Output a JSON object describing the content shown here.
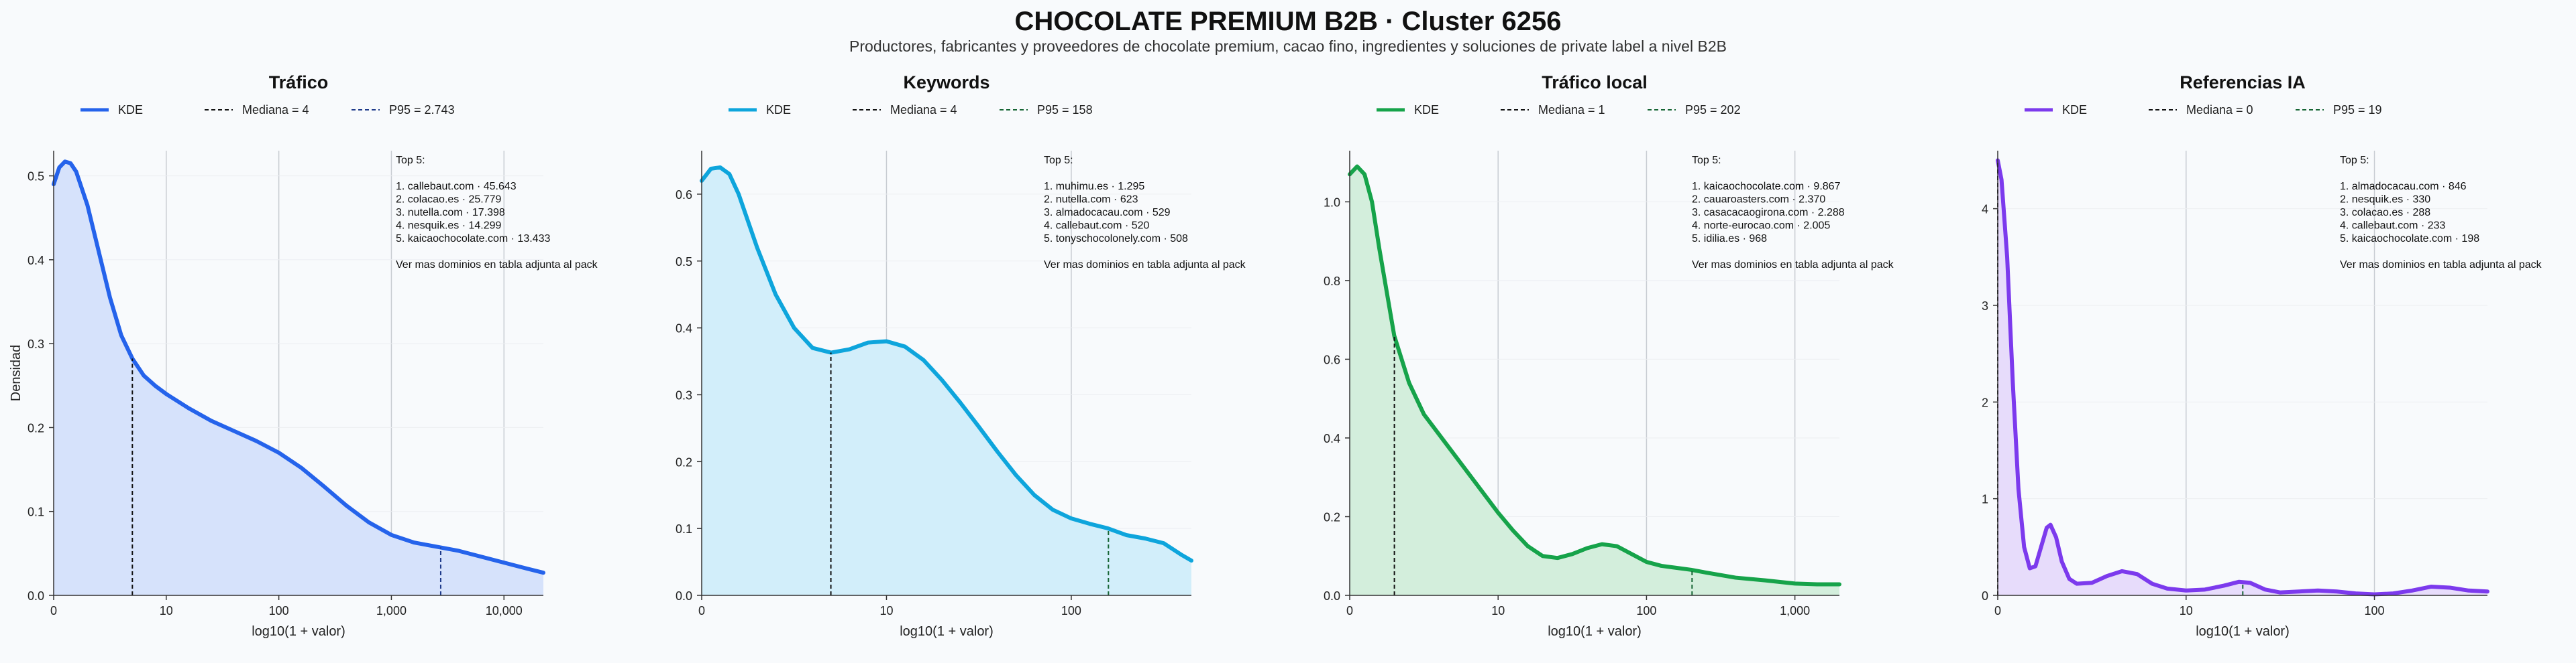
{
  "title": "CHOCOLATE PREMIUM B2B · Cluster 6256",
  "subtitle": "Productores, fabricantes y proveedores de chocolate premium, cacao fino, ingredientes y soluciones de private label a nivel B2B",
  "chart_data": [
    {
      "type": "area",
      "title": "Tráfico",
      "color": "#2563eb",
      "fill": "#d6e2fb",
      "xlabel": "log10(1 + valor)",
      "ylabel": "Densidad",
      "xlim": [
        0,
        4.35
      ],
      "ylim": [
        0,
        0.53
      ],
      "x_ticks": [
        {
          "v": 0,
          "label": "0"
        },
        {
          "v": 1,
          "label": "10"
        },
        {
          "v": 2,
          "label": "100"
        },
        {
          "v": 3,
          "label": "1,000"
        },
        {
          "v": 4,
          "label": "10,000"
        }
      ],
      "y_ticks": [
        {
          "v": 0,
          "label": "0.0"
        },
        {
          "v": 0.1,
          "label": "0.1"
        },
        {
          "v": 0.2,
          "label": "0.2"
        },
        {
          "v": 0.3,
          "label": "0.3"
        },
        {
          "v": 0.4,
          "label": "0.4"
        },
        {
          "v": 0.5,
          "label": "0.5"
        }
      ],
      "legend": {
        "kde": "KDE",
        "median": "Mediana = 4",
        "p95": "P95 = 2.743"
      },
      "median_x": 0.699,
      "p95_x": 3.438,
      "p95_color": "#1e3a8a",
      "kde": [
        [
          0,
          0.49
        ],
        [
          0.05,
          0.51
        ],
        [
          0.1,
          0.517
        ],
        [
          0.15,
          0.515
        ],
        [
          0.2,
          0.505
        ],
        [
          0.3,
          0.465
        ],
        [
          0.4,
          0.41
        ],
        [
          0.5,
          0.355
        ],
        [
          0.6,
          0.31
        ],
        [
          0.7,
          0.282
        ],
        [
          0.8,
          0.262
        ],
        [
          0.9,
          0.25
        ],
        [
          1.0,
          0.24
        ],
        [
          1.2,
          0.223
        ],
        [
          1.4,
          0.208
        ],
        [
          1.6,
          0.196
        ],
        [
          1.8,
          0.184
        ],
        [
          2.0,
          0.17
        ],
        [
          2.2,
          0.152
        ],
        [
          2.4,
          0.13
        ],
        [
          2.6,
          0.107
        ],
        [
          2.8,
          0.087
        ],
        [
          3.0,
          0.072
        ],
        [
          3.2,
          0.063
        ],
        [
          3.4,
          0.058
        ],
        [
          3.6,
          0.053
        ],
        [
          3.8,
          0.046
        ],
        [
          4.0,
          0.039
        ],
        [
          4.2,
          0.032
        ],
        [
          4.35,
          0.027
        ]
      ],
      "top": [
        "Top 5:",
        "",
        "1. callebaut.com · 45.643",
        "2. colacao.es · 25.779",
        "3. nutella.com · 17.398",
        "4. nesquik.es · 14.299",
        "5. kaicaochocolate.com · 13.433",
        "",
        "Ver mas dominios en tabla adjunta al pack"
      ]
    },
    {
      "type": "area",
      "title": "Keywords",
      "color": "#0ea5dc",
      "fill": "#d2eefa",
      "xlabel": "log10(1 + valor)",
      "ylabel": "",
      "xlim": [
        0,
        2.65
      ],
      "ylim": [
        0,
        0.665
      ],
      "x_ticks": [
        {
          "v": 0,
          "label": "0"
        },
        {
          "v": 1,
          "label": "10"
        },
        {
          "v": 2,
          "label": "100"
        }
      ],
      "y_ticks": [
        {
          "v": 0,
          "label": "0.0"
        },
        {
          "v": 0.1,
          "label": "0.1"
        },
        {
          "v": 0.2,
          "label": "0.2"
        },
        {
          "v": 0.3,
          "label": "0.3"
        },
        {
          "v": 0.4,
          "label": "0.4"
        },
        {
          "v": 0.5,
          "label": "0.5"
        },
        {
          "v": 0.6,
          "label": "0.6"
        }
      ],
      "legend": {
        "kde": "KDE",
        "median": "Mediana = 4",
        "p95": "P95 = 158"
      },
      "median_x": 0.699,
      "p95_x": 2.201,
      "p95_color": "#166534",
      "kde": [
        [
          0,
          0.62
        ],
        [
          0.05,
          0.638
        ],
        [
          0.1,
          0.64
        ],
        [
          0.15,
          0.63
        ],
        [
          0.2,
          0.6
        ],
        [
          0.3,
          0.52
        ],
        [
          0.4,
          0.45
        ],
        [
          0.5,
          0.4
        ],
        [
          0.6,
          0.37
        ],
        [
          0.7,
          0.363
        ],
        [
          0.8,
          0.368
        ],
        [
          0.9,
          0.378
        ],
        [
          1.0,
          0.38
        ],
        [
          1.1,
          0.372
        ],
        [
          1.2,
          0.352
        ],
        [
          1.3,
          0.322
        ],
        [
          1.4,
          0.288
        ],
        [
          1.5,
          0.252
        ],
        [
          1.6,
          0.215
        ],
        [
          1.7,
          0.18
        ],
        [
          1.8,
          0.15
        ],
        [
          1.9,
          0.128
        ],
        [
          2.0,
          0.115
        ],
        [
          2.1,
          0.107
        ],
        [
          2.2,
          0.1
        ],
        [
          2.3,
          0.09
        ],
        [
          2.4,
          0.085
        ],
        [
          2.5,
          0.078
        ],
        [
          2.6,
          0.06
        ],
        [
          2.65,
          0.052
        ]
      ],
      "top": [
        "Top 5:",
        "",
        "1. muhimu.es · 1.295",
        "2. nutella.com · 623",
        "3. almadocacau.com · 529",
        "4. callebaut.com · 520",
        "5. tonyschocolonely.com · 508",
        "",
        "Ver mas dominios en tabla adjunta al pack"
      ]
    },
    {
      "type": "area",
      "title": "Tráfico local",
      "color": "#16a34a",
      "fill": "#d3eedc",
      "xlabel": "log10(1 + valor)",
      "ylabel": "",
      "xlim": [
        0,
        3.3
      ],
      "ylim": [
        0,
        1.13
      ],
      "x_ticks": [
        {
          "v": 0,
          "label": "0"
        },
        {
          "v": 1,
          "label": "10"
        },
        {
          "v": 2,
          "label": "100"
        },
        {
          "v": 3,
          "label": "1,000"
        }
      ],
      "y_ticks": [
        {
          "v": 0,
          "label": "0.0"
        },
        {
          "v": 0.2,
          "label": "0.2"
        },
        {
          "v": 0.4,
          "label": "0.4"
        },
        {
          "v": 0.6,
          "label": "0.6"
        },
        {
          "v": 0.8,
          "label": "0.8"
        },
        {
          "v": 1.0,
          "label": "1.0"
        }
      ],
      "legend": {
        "kde": "KDE",
        "median": "Mediana = 1",
        "p95": "P95 = 202"
      },
      "median_x": 0.301,
      "p95_x": 2.307,
      "p95_color": "#166534",
      "kde": [
        [
          0,
          1.07
        ],
        [
          0.05,
          1.09
        ],
        [
          0.1,
          1.07
        ],
        [
          0.15,
          1.0
        ],
        [
          0.2,
          0.88
        ],
        [
          0.3,
          0.66
        ],
        [
          0.4,
          0.54
        ],
        [
          0.5,
          0.46
        ],
        [
          0.6,
          0.41
        ],
        [
          0.7,
          0.36
        ],
        [
          0.8,
          0.31
        ],
        [
          0.9,
          0.26
        ],
        [
          1.0,
          0.21
        ],
        [
          1.1,
          0.165
        ],
        [
          1.2,
          0.125
        ],
        [
          1.3,
          0.1
        ],
        [
          1.4,
          0.095
        ],
        [
          1.5,
          0.105
        ],
        [
          1.6,
          0.12
        ],
        [
          1.7,
          0.13
        ],
        [
          1.8,
          0.125
        ],
        [
          1.9,
          0.105
        ],
        [
          2.0,
          0.085
        ],
        [
          2.1,
          0.075
        ],
        [
          2.2,
          0.07
        ],
        [
          2.3,
          0.065
        ],
        [
          2.4,
          0.058
        ],
        [
          2.6,
          0.045
        ],
        [
          2.8,
          0.038
        ],
        [
          3.0,
          0.03
        ],
        [
          3.15,
          0.028
        ],
        [
          3.3,
          0.028
        ]
      ],
      "top": [
        "Top 5:",
        "",
        "1. kaicaochocolate.com · 9.867",
        "2. cauaroasters.com · 2.370",
        "3. casacacaogirona.com · 2.288",
        "4. norte-eurocao.com · 2.005",
        "5. idilia.es · 968",
        "",
        "Ver mas dominios en tabla adjunta al pack"
      ]
    },
    {
      "type": "area",
      "title": "Referencias IA",
      "color": "#7c3aed",
      "fill": "#e7dcfb",
      "xlabel": "log10(1 + valor)",
      "ylabel": "",
      "xlim": [
        0,
        2.6
      ],
      "ylim": [
        0,
        4.6
      ],
      "x_ticks": [
        {
          "v": 0,
          "label": "0"
        },
        {
          "v": 1,
          "label": "10"
        },
        {
          "v": 2,
          "label": "100"
        }
      ],
      "y_ticks": [
        {
          "v": 0,
          "label": "0"
        },
        {
          "v": 1,
          "label": "1"
        },
        {
          "v": 2,
          "label": "2"
        },
        {
          "v": 3,
          "label": "3"
        },
        {
          "v": 4,
          "label": "4"
        }
      ],
      "legend": {
        "kde": "KDE",
        "median": "Mediana = 0",
        "p95": "P95 = 19"
      },
      "median_x": 0,
      "p95_x": 1.301,
      "p95_color": "#166534",
      "kde": [
        [
          0,
          4.5
        ],
        [
          0.02,
          4.3
        ],
        [
          0.05,
          3.5
        ],
        [
          0.08,
          2.2
        ],
        [
          0.11,
          1.1
        ],
        [
          0.14,
          0.5
        ],
        [
          0.17,
          0.28
        ],
        [
          0.2,
          0.3
        ],
        [
          0.23,
          0.5
        ],
        [
          0.26,
          0.7
        ],
        [
          0.28,
          0.73
        ],
        [
          0.31,
          0.6
        ],
        [
          0.34,
          0.35
        ],
        [
          0.38,
          0.17
        ],
        [
          0.42,
          0.12
        ],
        [
          0.5,
          0.13
        ],
        [
          0.58,
          0.2
        ],
        [
          0.66,
          0.25
        ],
        [
          0.74,
          0.22
        ],
        [
          0.82,
          0.12
        ],
        [
          0.9,
          0.07
        ],
        [
          1.0,
          0.05
        ],
        [
          1.1,
          0.06
        ],
        [
          1.2,
          0.1
        ],
        [
          1.28,
          0.14
        ],
        [
          1.34,
          0.13
        ],
        [
          1.42,
          0.06
        ],
        [
          1.5,
          0.03
        ],
        [
          1.6,
          0.04
        ],
        [
          1.7,
          0.05
        ],
        [
          1.8,
          0.04
        ],
        [
          1.9,
          0.02
        ],
        [
          2.0,
          0.01
        ],
        [
          2.1,
          0.02
        ],
        [
          2.2,
          0.05
        ],
        [
          2.3,
          0.09
        ],
        [
          2.4,
          0.08
        ],
        [
          2.5,
          0.05
        ],
        [
          2.6,
          0.04
        ]
      ],
      "top": [
        "Top 5:",
        "",
        "1. almadocacau.com · 846",
        "2. nesquik.es · 330",
        "3. colacao.es · 288",
        "4. callebaut.com · 233",
        "5. kaicaochocolate.com · 198",
        "",
        "Ver mas dominios en tabla adjunta al pack"
      ]
    }
  ]
}
